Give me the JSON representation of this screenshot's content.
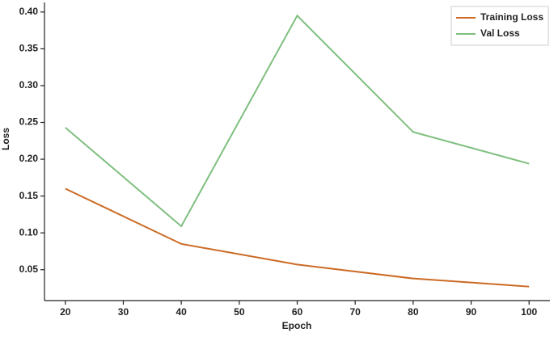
{
  "chart_data": {
    "type": "line",
    "x_label": "Epoch",
    "y_label": "Loss",
    "x": [
      20,
      40,
      60,
      80,
      100
    ],
    "series": [
      {
        "name": "Training Loss",
        "color": "#cc6a24",
        "values": [
          0.16,
          0.085,
          0.057,
          0.038,
          0.027
        ]
      },
      {
        "name": "Val Loss",
        "color": "#7fbf7f",
        "values": [
          0.243,
          0.109,
          0.395,
          0.237,
          0.194
        ]
      }
    ],
    "xlim": [
      16.4,
      103.6
    ],
    "xticks": [
      20,
      30,
      40,
      50,
      60,
      70,
      80,
      90,
      100
    ],
    "ylim": [
      0.008,
      0.413
    ],
    "yticks": [
      {
        "value": 0.05,
        "label": "0.05"
      },
      {
        "value": 0.1,
        "label": "0.10"
      },
      {
        "value": 0.15,
        "label": "0.15"
      },
      {
        "value": 0.2,
        "label": "0.20"
      },
      {
        "value": 0.25,
        "label": "0.25"
      },
      {
        "value": 0.3,
        "label": "0.30"
      },
      {
        "value": 0.35,
        "label": "0.35"
      },
      {
        "value": 0.4,
        "label": "0.40"
      }
    ],
    "grid": false,
    "legend": "upper right"
  }
}
